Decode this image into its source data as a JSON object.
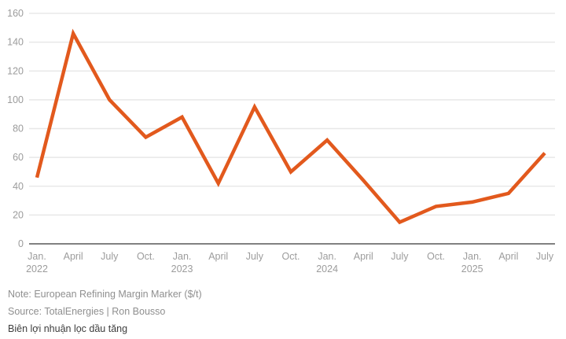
{
  "chart_data": {
    "type": "line",
    "title": "",
    "xlabel": "",
    "ylabel": "",
    "x": [
      "Jan.",
      "April",
      "July",
      "Oct.",
      "Jan.",
      "April",
      "July",
      "Oct.",
      "Jan.",
      "April",
      "July",
      "Oct.",
      "Jan.",
      "April",
      "July"
    ],
    "years": {
      "0": "2022",
      "4": "2023",
      "8": "2024",
      "12": "2025"
    },
    "series": [
      {
        "name": "European Refining Margin Marker ($/t)",
        "values": [
          46,
          146,
          100,
          74,
          88,
          42,
          95,
          50,
          72,
          44,
          15,
          26,
          29,
          35,
          63
        ]
      }
    ],
    "ylim": [
      0,
      160
    ],
    "ytick_step": 20,
    "yticks": [
      0,
      20,
      40,
      60,
      80,
      100,
      120,
      140,
      160
    ],
    "grid": true,
    "legend_position": "none",
    "line_color": "#E2591D",
    "grid_color": "#e8e8e8",
    "axis_color": "#6f6f6f",
    "tick_label_color": "#9c9c9c"
  },
  "notes": {
    "note": "Note: European Refining Margin Marker ($/t)",
    "source": "Source: TotalEnergies | Ron Bousso",
    "caption": "Biên lợi nhuận lọc dầu tăng"
  }
}
